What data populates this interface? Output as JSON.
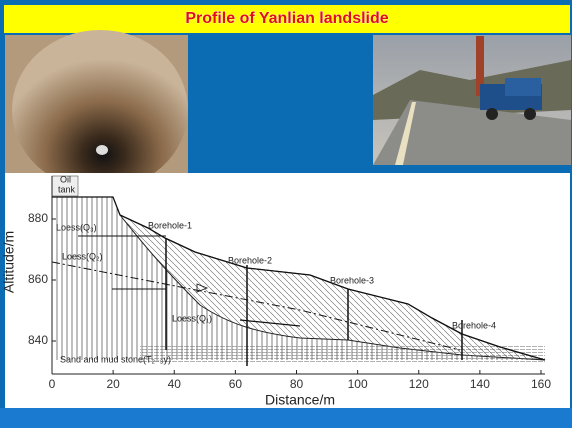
{
  "header": {
    "title": "Profile of Yanlian landslide"
  },
  "profile": {
    "x_label": "Distance/m",
    "y_label": "Altitude/m",
    "xlim": [
      0,
      160
    ],
    "xticks": [
      0,
      20,
      40,
      60,
      80,
      100,
      120,
      140,
      160
    ],
    "ylim": [
      880,
      840
    ],
    "yticks": [
      840,
      860,
      880
    ],
    "labels": [
      "Oil",
      "tank",
      "Borehole-1",
      "Borehole-2",
      "Borehole-3",
      "Borehole-4",
      "Loess(Q₃)",
      "Loess(Q₂)",
      "Loess(Q₁)",
      "Sand and mud stone(T₂₋₃y)"
    ]
  }
}
